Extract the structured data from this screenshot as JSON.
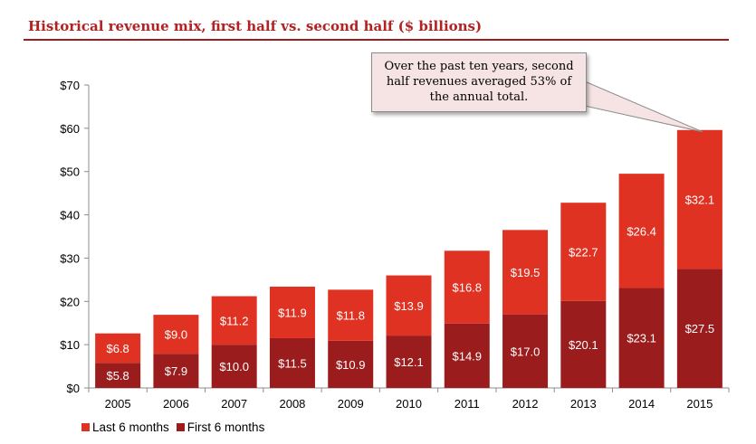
{
  "title": "Historical revenue mix, first half vs. second half ($ billions)",
  "callout": "Over the past ten years, second half revenues averaged 53% of the annual total.",
  "colors": {
    "title": "#b22222",
    "first_half": "#9b1c1c",
    "last_half": "#e03222",
    "axis": "#8c8c8c"
  },
  "chart_data": {
    "type": "bar",
    "stacked": true,
    "categories": [
      "2005",
      "2006",
      "2007",
      "2008",
      "2009",
      "2010",
      "2011",
      "2012",
      "2013",
      "2014",
      "2015"
    ],
    "series": [
      {
        "name": "First 6 months",
        "values": [
          5.8,
          7.9,
          10.0,
          11.5,
          10.9,
          12.1,
          14.9,
          17.0,
          20.1,
          23.1,
          27.5
        ],
        "labels": [
          "$5.8",
          "$7.9",
          "$10.0",
          "$11.5",
          "$10.9",
          "$12.1",
          "$14.9",
          "$17.0",
          "$20.1",
          "$23.1",
          "$27.5"
        ],
        "color": "#9b1c1c"
      },
      {
        "name": "Last 6 months",
        "values": [
          6.8,
          9.0,
          11.2,
          11.9,
          11.8,
          13.9,
          16.8,
          19.5,
          22.7,
          26.4,
          32.1
        ],
        "labels": [
          "$6.8",
          "$9.0",
          "$11.2",
          "$11.9",
          "$11.8",
          "$13.9",
          "$16.8",
          "$19.5",
          "$22.7",
          "$26.4",
          "$32.1"
        ],
        "color": "#e03222"
      }
    ],
    "ylim": [
      0,
      70
    ],
    "yticks": [
      0,
      10,
      20,
      30,
      40,
      50,
      60,
      70
    ],
    "ytick_labels": [
      "$0",
      "$10",
      "$20",
      "$30",
      "$40",
      "$50",
      "$60",
      "$70"
    ],
    "grid": false,
    "legend_position": "bottom-left",
    "legend": [
      {
        "label": "Last 6 months",
        "color": "#e03222"
      },
      {
        "label": "First 6 months",
        "color": "#9b1c1c"
      }
    ]
  }
}
